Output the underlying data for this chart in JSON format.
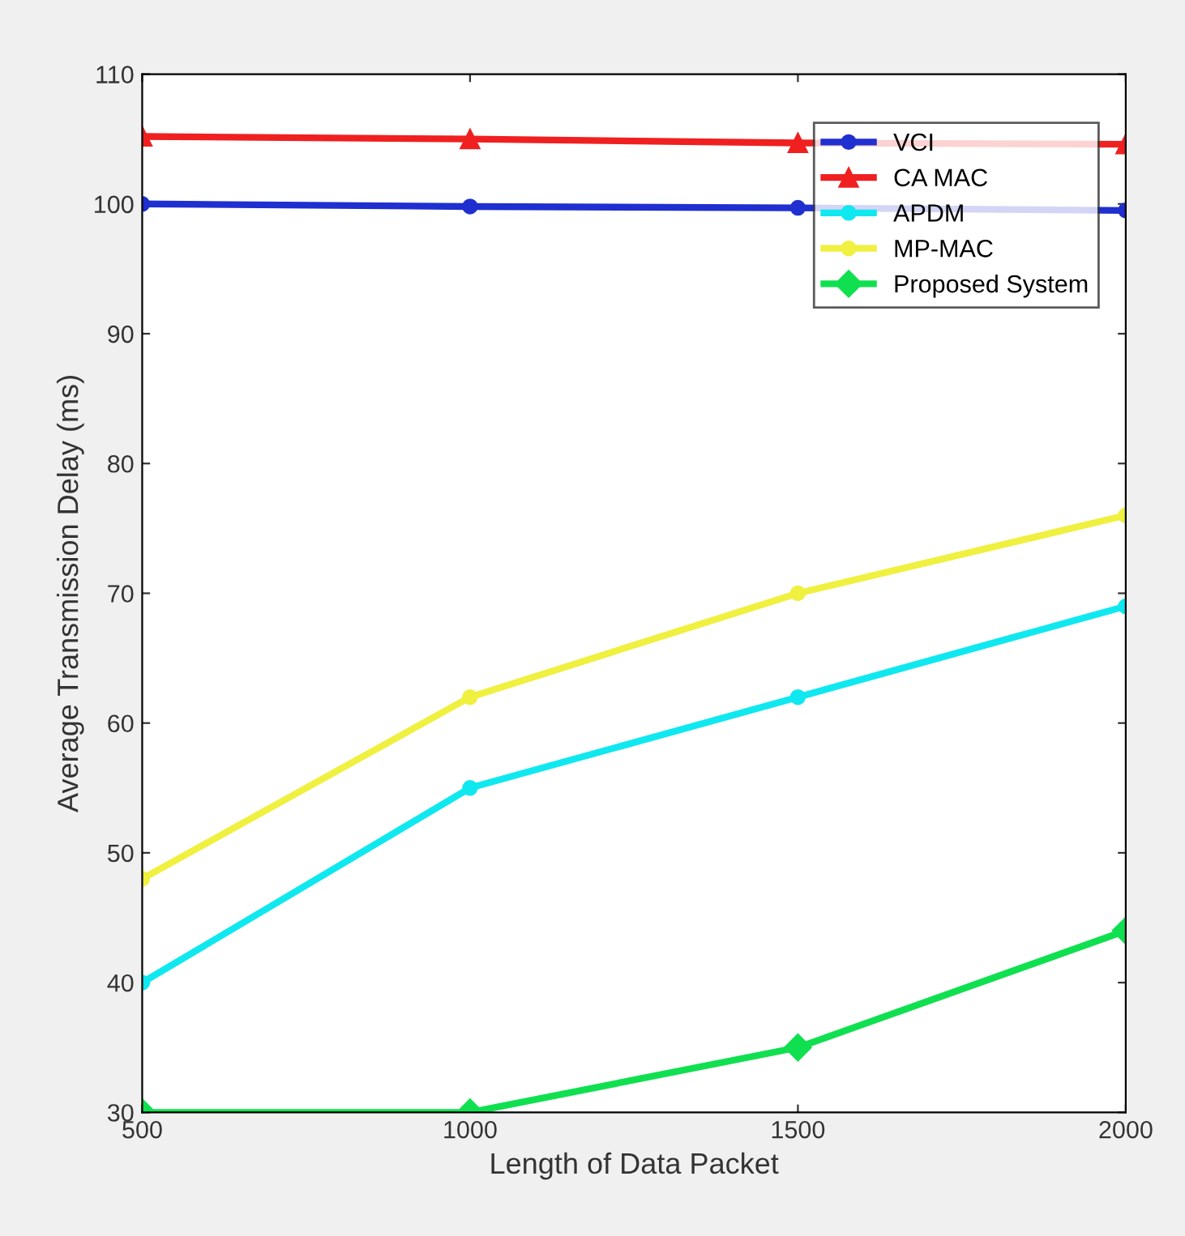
{
  "chart_data": {
    "type": "line",
    "xlabel": "Length of Data Packet",
    "ylabel": "Average Transmission Delay (ms)",
    "x": [
      500,
      1000,
      1500,
      2000
    ],
    "series": [
      {
        "name": "VCI",
        "color": "#1f2fd0",
        "marker": "circle",
        "values": [
          100,
          99.8,
          99.7,
          99.5
        ]
      },
      {
        "name": "CA MAC",
        "color": "#f02020",
        "marker": "triangle",
        "values": [
          105.2,
          105,
          104.7,
          104.6
        ]
      },
      {
        "name": "APDM",
        "color": "#10e8f0",
        "marker": "circle",
        "values": [
          40,
          55,
          62,
          69
        ]
      },
      {
        "name": "MP-MAC",
        "color": "#f0f040",
        "marker": "circle",
        "values": [
          48,
          62,
          70,
          76
        ]
      },
      {
        "name": "Proposed System",
        "color": "#10e050",
        "marker": "diamond",
        "values": [
          30,
          30,
          35,
          44
        ]
      }
    ],
    "xlim": [
      500,
      2000
    ],
    "xticks": [
      500,
      1000,
      1500,
      2000
    ],
    "ylim": [
      30,
      110
    ],
    "yticks": [
      30,
      40,
      50,
      60,
      70,
      80,
      90,
      100,
      110
    ],
    "grid": false,
    "legend": "top right",
    "line_style": "solid"
  }
}
